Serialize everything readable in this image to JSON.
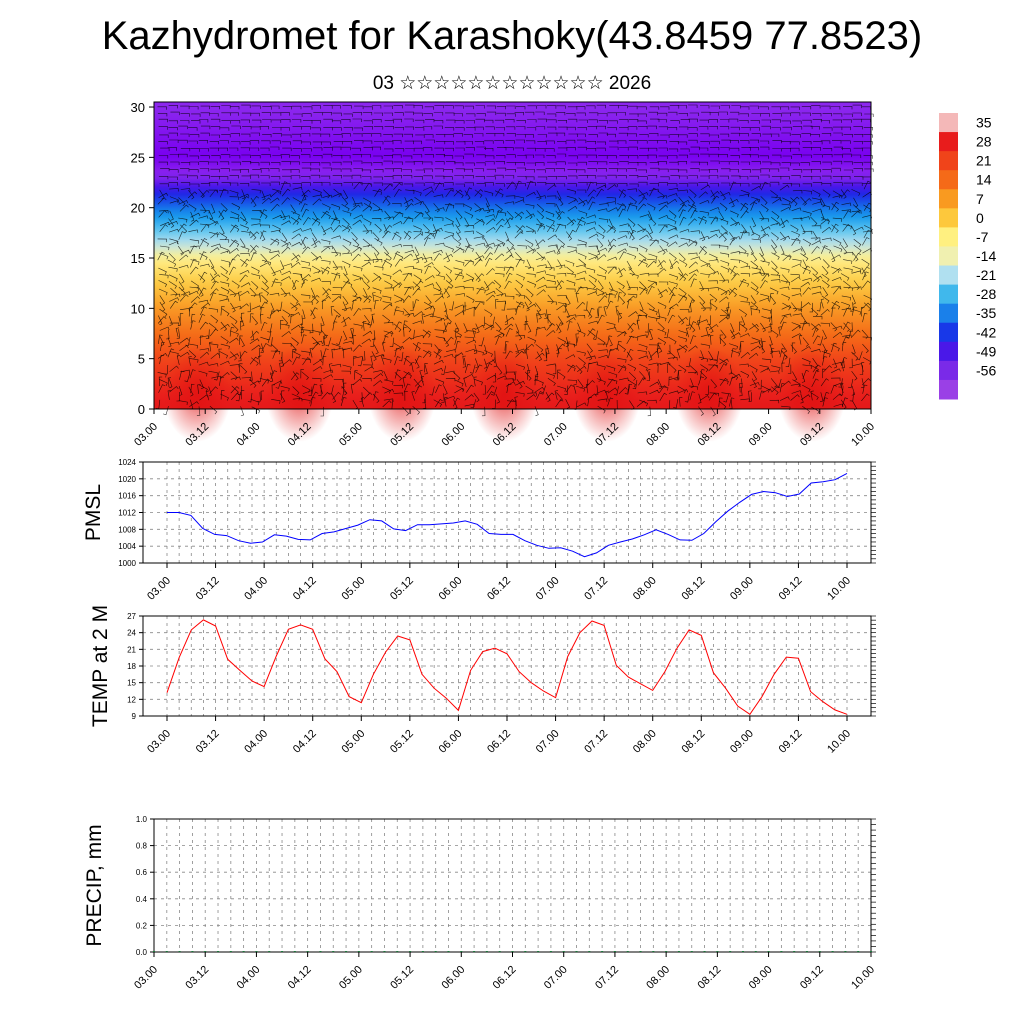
{
  "title": "Kazhydromet for Karashoky(43.8459 77.8523)",
  "subtitle": "03 ☆☆☆☆☆☆☆☆☆☆☆☆ 2026",
  "colorbar": {
    "labels": [
      "35",
      "28",
      "21",
      "14",
      "7",
      "0",
      "-7",
      "-14",
      "-21",
      "-28",
      "-35",
      "-42",
      "-49",
      "-56"
    ],
    "colors": [
      "#f4b8b8",
      "#e81c1c",
      "#f0441a",
      "#f56a18",
      "#f99a20",
      "#fdc83c",
      "#fff080",
      "#f0f0b0",
      "#b0e0f0",
      "#40b8ec",
      "#1a80ea",
      "#1838e8",
      "#4a18e8",
      "#7a2ae8",
      "#9a40e6"
    ]
  },
  "chart_data": [
    {
      "type": "heatmap",
      "name": "cross-section",
      "x_tick_labels": [
        "03.00",
        "03.12",
        "04.00",
        "04.12",
        "05.00",
        "05.12",
        "06.00",
        "06.12",
        "07.00",
        "07.12",
        "08.00",
        "08.12",
        "09.00",
        "09.12",
        "10.00"
      ],
      "yticks": [
        0,
        5,
        10,
        15,
        20,
        25,
        30
      ],
      "ylim": [
        0,
        30.5
      ],
      "z_range": [
        -60,
        35
      ],
      "temperature_profile_by_level": [
        {
          "level": 0,
          "value": 30
        },
        {
          "level": 5,
          "value": 20
        },
        {
          "level": 10,
          "value": 8
        },
        {
          "level": 15,
          "value": -7
        },
        {
          "level": 20,
          "value": -32
        },
        {
          "level": 23,
          "value": -55
        },
        {
          "level": 25,
          "value": -62
        },
        {
          "level": 30,
          "value": -56
        }
      ],
      "wind_barbs": true
    },
    {
      "type": "line",
      "ylabel": "PMSL",
      "ylim": [
        1000,
        1024
      ],
      "yticks": [
        1000,
        1004,
        1008,
        1012,
        1016,
        1020,
        1024
      ],
      "x_tick_labels": [
        "03.00",
        "03.12",
        "04.00",
        "04.12",
        "05.00",
        "05.12",
        "06.00",
        "06.12",
        "07.00",
        "07.12",
        "08.00",
        "08.12",
        "09.00",
        "09.12",
        "10.00"
      ],
      "color": "#0000ff",
      "values": [
        1012.0,
        1012.0,
        1011.3,
        1008.2,
        1006.8,
        1006.5,
        1005.3,
        1004.7,
        1005.0,
        1006.7,
        1006.4,
        1005.6,
        1005.5,
        1007.0,
        1007.4,
        1008.2,
        1009.0,
        1010.3,
        1010.0,
        1008.1,
        1007.7,
        1009.1,
        1009.1,
        1009.3,
        1009.5,
        1010.0,
        1009.2,
        1007.0,
        1006.8,
        1006.8,
        1005.3,
        1004.2,
        1003.5,
        1003.6,
        1002.8,
        1001.5,
        1002.4,
        1004.2,
        1005.0,
        1005.7,
        1006.7,
        1007.9,
        1006.8,
        1005.5,
        1005.4,
        1007.0,
        1009.8,
        1012.3,
        1014.4,
        1016.3,
        1017.0,
        1016.7,
        1015.8,
        1016.4,
        1019.0,
        1019.3,
        1019.8,
        1021.3
      ]
    },
    {
      "type": "line",
      "ylabel": "TEMP at 2 M",
      "ylim": [
        9,
        27
      ],
      "yticks": [
        9,
        12,
        15,
        18,
        21,
        24,
        27
      ],
      "x_tick_labels": [
        "03.00",
        "03.12",
        "04.00",
        "04.12",
        "05.00",
        "05.12",
        "06.00",
        "06.12",
        "07.00",
        "07.12",
        "08.00",
        "08.12",
        "09.00",
        "09.12",
        "10.00"
      ],
      "color": "#ff0000",
      "values": [
        13.2,
        19.5,
        24.5,
        26.3,
        25.2,
        19.2,
        17.2,
        15.3,
        14.3,
        19.8,
        24.6,
        25.4,
        24.6,
        19.3,
        17.0,
        12.5,
        11.4,
        16.5,
        20.5,
        23.4,
        22.7,
        16.5,
        14.0,
        12.2,
        10.0,
        17.2,
        20.6,
        21.2,
        20.2,
        17.0,
        15.0,
        13.5,
        12.3,
        19.7,
        24.0,
        26.1,
        25.3,
        18.1,
        16.0,
        14.8,
        13.6,
        17.0,
        21.2,
        24.5,
        23.5,
        16.8,
        14.0,
        10.8,
        9.3,
        12.5,
        16.5,
        19.6,
        19.4,
        13.4,
        11.6,
        10.1,
        9.3
      ]
    },
    {
      "type": "bar",
      "ylabel": "PRECIP, mm",
      "ylim": [
        0,
        1.0
      ],
      "yticks": [
        "0.0",
        "0.2",
        "0.4",
        "0.6",
        "0.8",
        "1.0"
      ],
      "x_tick_labels": [
        "03.00",
        "03.12",
        "04.00",
        "04.12",
        "05.00",
        "05.12",
        "06.00",
        "06.12",
        "07.00",
        "07.12",
        "08.00",
        "08.12",
        "09.00",
        "09.12",
        "10.00"
      ],
      "values": [
        0,
        0,
        0,
        0,
        0,
        0,
        0,
        0,
        0,
        0,
        0,
        0,
        0,
        0,
        0,
        0,
        0,
        0,
        0,
        0,
        0,
        0,
        0,
        0,
        0,
        0,
        0,
        0,
        0,
        0,
        0,
        0,
        0,
        0,
        0,
        0,
        0,
        0,
        0,
        0,
        0,
        0,
        0,
        0,
        0,
        0,
        0,
        0,
        0,
        0,
        0,
        0,
        0,
        0,
        0,
        0,
        0
      ]
    }
  ]
}
